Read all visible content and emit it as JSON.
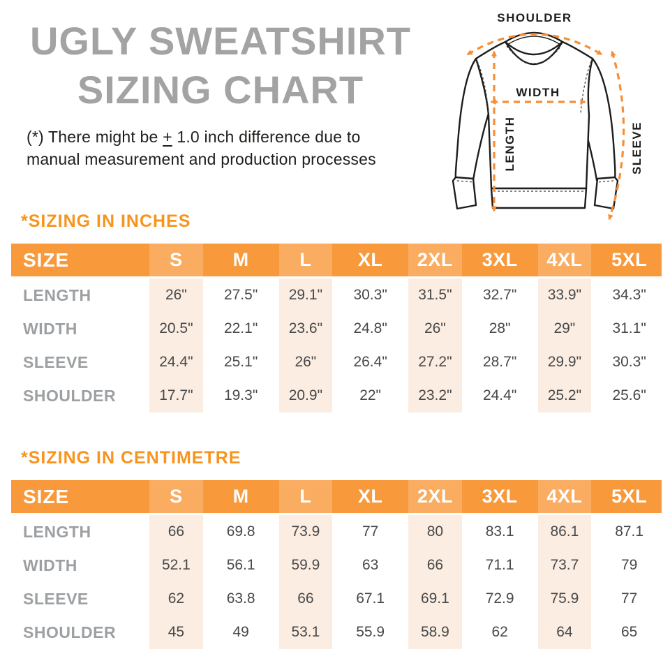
{
  "title": {
    "line1": "UGLY SWEATSHIRT",
    "line2": "SIZING CHART"
  },
  "disclaimer": {
    "line1_prefix": "(*) There might be ",
    "plus_minus": "+",
    "line1_suffix": " 1.0 inch difference due to",
    "line2": "manual measurement and production processes"
  },
  "diagram": {
    "labels": {
      "shoulder": "SHOULDER",
      "width": "WIDTH",
      "length": "LENGTH",
      "sleeve": "SLEEVE"
    }
  },
  "tables": [
    {
      "heading": "*SIZING IN INCHES",
      "size_label": "SIZE",
      "columns": [
        "S",
        "M",
        "L",
        "XL",
        "2XL",
        "3XL",
        "4XL",
        "5XL"
      ],
      "rows": [
        {
          "label": "LENGTH",
          "values": [
            "26\"",
            "27.5\"",
            "29.1\"",
            "30.3\"",
            "31.5\"",
            "32.7\"",
            "33.9\"",
            "34.3\""
          ]
        },
        {
          "label": "WIDTH",
          "values": [
            "20.5\"",
            "22.1\"",
            "23.6\"",
            "24.8\"",
            "26\"",
            "28\"",
            "29\"",
            "31.1\""
          ]
        },
        {
          "label": "SLEEVE",
          "values": [
            "24.4\"",
            "25.1\"",
            "26\"",
            "26.4\"",
            "27.2\"",
            "28.7\"",
            "29.9\"",
            "30.3\""
          ]
        },
        {
          "label": "SHOULDER",
          "values": [
            "17.7\"",
            "19.3\"",
            "20.9\"",
            "22\"",
            "23.2\"",
            "24.4\"",
            "25.2\"",
            "25.6\""
          ]
        }
      ]
    },
    {
      "heading": "*SIZING IN CENTIMETRE",
      "size_label": "SIZE",
      "columns": [
        "S",
        "M",
        "L",
        "XL",
        "2XL",
        "3XL",
        "4XL",
        "5XL"
      ],
      "rows": [
        {
          "label": "LENGTH",
          "values": [
            "66",
            "69.8",
            "73.9",
            "77",
            "80",
            "83.1",
            "86.1",
            "87.1"
          ]
        },
        {
          "label": "WIDTH",
          "values": [
            "52.1",
            "56.1",
            "59.9",
            "63",
            "66",
            "71.1",
            "73.7",
            "79"
          ]
        },
        {
          "label": "SLEEVE",
          "values": [
            "62",
            "63.8",
            "66",
            "67.1",
            "69.1",
            "72.9",
            "75.9",
            "77"
          ]
        },
        {
          "label": "SHOULDER",
          "values": [
            "45",
            "49",
            "53.1",
            "55.9",
            "58.9",
            "62",
            "64",
            "65"
          ]
        }
      ]
    }
  ],
  "colors": {
    "orange": "#F8993B",
    "orange_light": "#FAAC61",
    "peach": "#FBEDE1",
    "heading_orange": "#F8941D",
    "arrow_orange": "#F78E35",
    "title_gray": "#A3A3A3",
    "label_gray": "#9DA0A2",
    "value_dark": "#47484A",
    "text_black": "#1D1D1B",
    "line_black": "#1D1D1B"
  }
}
